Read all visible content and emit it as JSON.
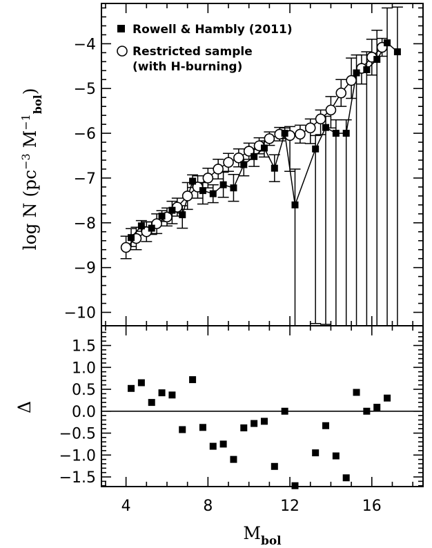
{
  "chart_data": [
    {
      "type": "scatter",
      "panel": "top",
      "ylabel": "log N (pc⁻³ M⁻¹bol)",
      "ylabel_main": "log N (pc",
      "ylabel_sup": "−3",
      "ylabel_mid": " M",
      "ylabel_sup2": "−1",
      "ylabel_sub": "bol",
      "ylabel_end": ")",
      "xlim": [
        2.8,
        18.5
      ],
      "ylim": [
        -10.3,
        -3.1
      ],
      "yticks": [
        "-10",
        "-9",
        "-8",
        "-7",
        "-6",
        "-5",
        "-4"
      ],
      "legend_position": "top-left",
      "series": [
        {
          "name": "Rowell & Hambly (2011)",
          "marker": "filled-square",
          "connected": true,
          "x": [
            4.25,
            4.75,
            5.25,
            5.75,
            6.25,
            6.75,
            7.25,
            7.75,
            8.25,
            8.75,
            9.25,
            9.75,
            10.25,
            10.75,
            11.25,
            11.75,
            12.25,
            13.25,
            13.75,
            14.25,
            14.75,
            15.25,
            15.75,
            16.25,
            16.75,
            17.25
          ],
          "y": [
            -8.33,
            -8.07,
            -8.12,
            -7.85,
            -7.72,
            -7.82,
            -7.07,
            -7.28,
            -7.35,
            -7.15,
            -7.22,
            -6.7,
            -6.52,
            -6.33,
            -6.78,
            -6.0,
            -7.6,
            -6.35,
            -5.87,
            -6.0,
            -6.0,
            -4.65,
            -4.58,
            -4.35,
            -3.98,
            -4.18
          ],
          "err_low": [
            0.2,
            0.12,
            0.14,
            0.12,
            0.3,
            0.3,
            0.14,
            0.3,
            0.2,
            0.28,
            0.3,
            0.25,
            0.22,
            0.2,
            0.3,
            0.12,
            2.7,
            3.9,
            4.4,
            4.3,
            4.3,
            5.65,
            5.72,
            5.95,
            6.32,
            6.12
          ],
          "err_high": [
            0.2,
            0.12,
            0.14,
            0.12,
            0.2,
            0.2,
            0.14,
            0.18,
            0.2,
            0.28,
            0.3,
            0.12,
            0.16,
            0.16,
            0.3,
            0.12,
            0.8,
            0.3,
            0.25,
            0.3,
            0.3,
            0.4,
            0.4,
            0.65,
            0.78,
            1.0
          ]
        },
        {
          "name": "Restricted sample\n(with H-burning)",
          "name_line1": "Restricted sample",
          "name_line2": "(with H-burning)",
          "marker": "open-circle",
          "connected": true,
          "x": [
            4.0,
            4.5,
            5.0,
            5.5,
            6.0,
            6.5,
            7.0,
            7.5,
            8.0,
            8.5,
            9.0,
            9.5,
            10.0,
            10.5,
            11.0,
            11.5,
            12.0,
            12.5,
            13.0,
            13.5,
            14.0,
            14.5,
            15.0,
            15.5,
            16.0,
            16.5
          ],
          "y": [
            -8.55,
            -8.35,
            -8.2,
            -8.02,
            -7.87,
            -7.65,
            -7.4,
            -7.2,
            -7.0,
            -6.8,
            -6.65,
            -6.55,
            -6.4,
            -6.28,
            -6.12,
            -6.02,
            -6.05,
            -6.02,
            -5.88,
            -5.68,
            -5.48,
            -5.1,
            -4.82,
            -4.55,
            -4.3,
            -4.08
          ],
          "err_low": [
            0.25,
            0.25,
            0.22,
            0.22,
            0.2,
            0.2,
            0.3,
            0.25,
            0.22,
            0.22,
            0.2,
            0.2,
            0.18,
            0.18,
            0.15,
            0.15,
            0.8,
            0.2,
            0.35,
            0.35,
            0.4,
            0.3,
            0.4,
            0.35,
            0.4,
            0.2
          ],
          "err_high": [
            0.25,
            0.25,
            0.22,
            0.22,
            0.2,
            0.2,
            0.3,
            0.25,
            0.22,
            0.22,
            0.2,
            0.2,
            0.18,
            0.18,
            0.15,
            0.15,
            0.2,
            0.2,
            0.2,
            0.2,
            0.3,
            0.3,
            0.5,
            0.3,
            0.4,
            0.2
          ]
        }
      ]
    },
    {
      "type": "scatter",
      "panel": "bottom",
      "xlabel": "M",
      "xlabel_sub": "bol",
      "ylabel": "Δ",
      "xlim": [
        2.8,
        18.5
      ],
      "ylim": [
        -1.72,
        1.95
      ],
      "xticks": [
        "4",
        "8",
        "12",
        "16"
      ],
      "yticks": [
        "-1.5",
        "-1.0",
        "-0.5",
        "0.0",
        "0.5",
        "1.0",
        "1.5"
      ],
      "reference_line_y": 0.0,
      "series": [
        {
          "name": "",
          "marker": "filled-square",
          "x": [
            4.25,
            4.75,
            5.25,
            5.75,
            6.25,
            6.75,
            7.25,
            7.75,
            8.25,
            8.75,
            9.25,
            9.75,
            10.25,
            10.75,
            11.25,
            11.75,
            12.25,
            13.25,
            13.75,
            14.25,
            14.75,
            15.25,
            15.75,
            16.25,
            16.75
          ],
          "y": [
            0.52,
            0.65,
            0.2,
            0.42,
            0.37,
            -0.42,
            0.72,
            -0.37,
            -0.8,
            -0.75,
            -1.1,
            -0.38,
            -0.28,
            -0.23,
            -1.26,
            0.0,
            -1.7,
            -0.95,
            -0.33,
            -1.02,
            -1.52,
            0.43,
            0.0,
            0.09,
            0.3
          ]
        }
      ]
    }
  ]
}
